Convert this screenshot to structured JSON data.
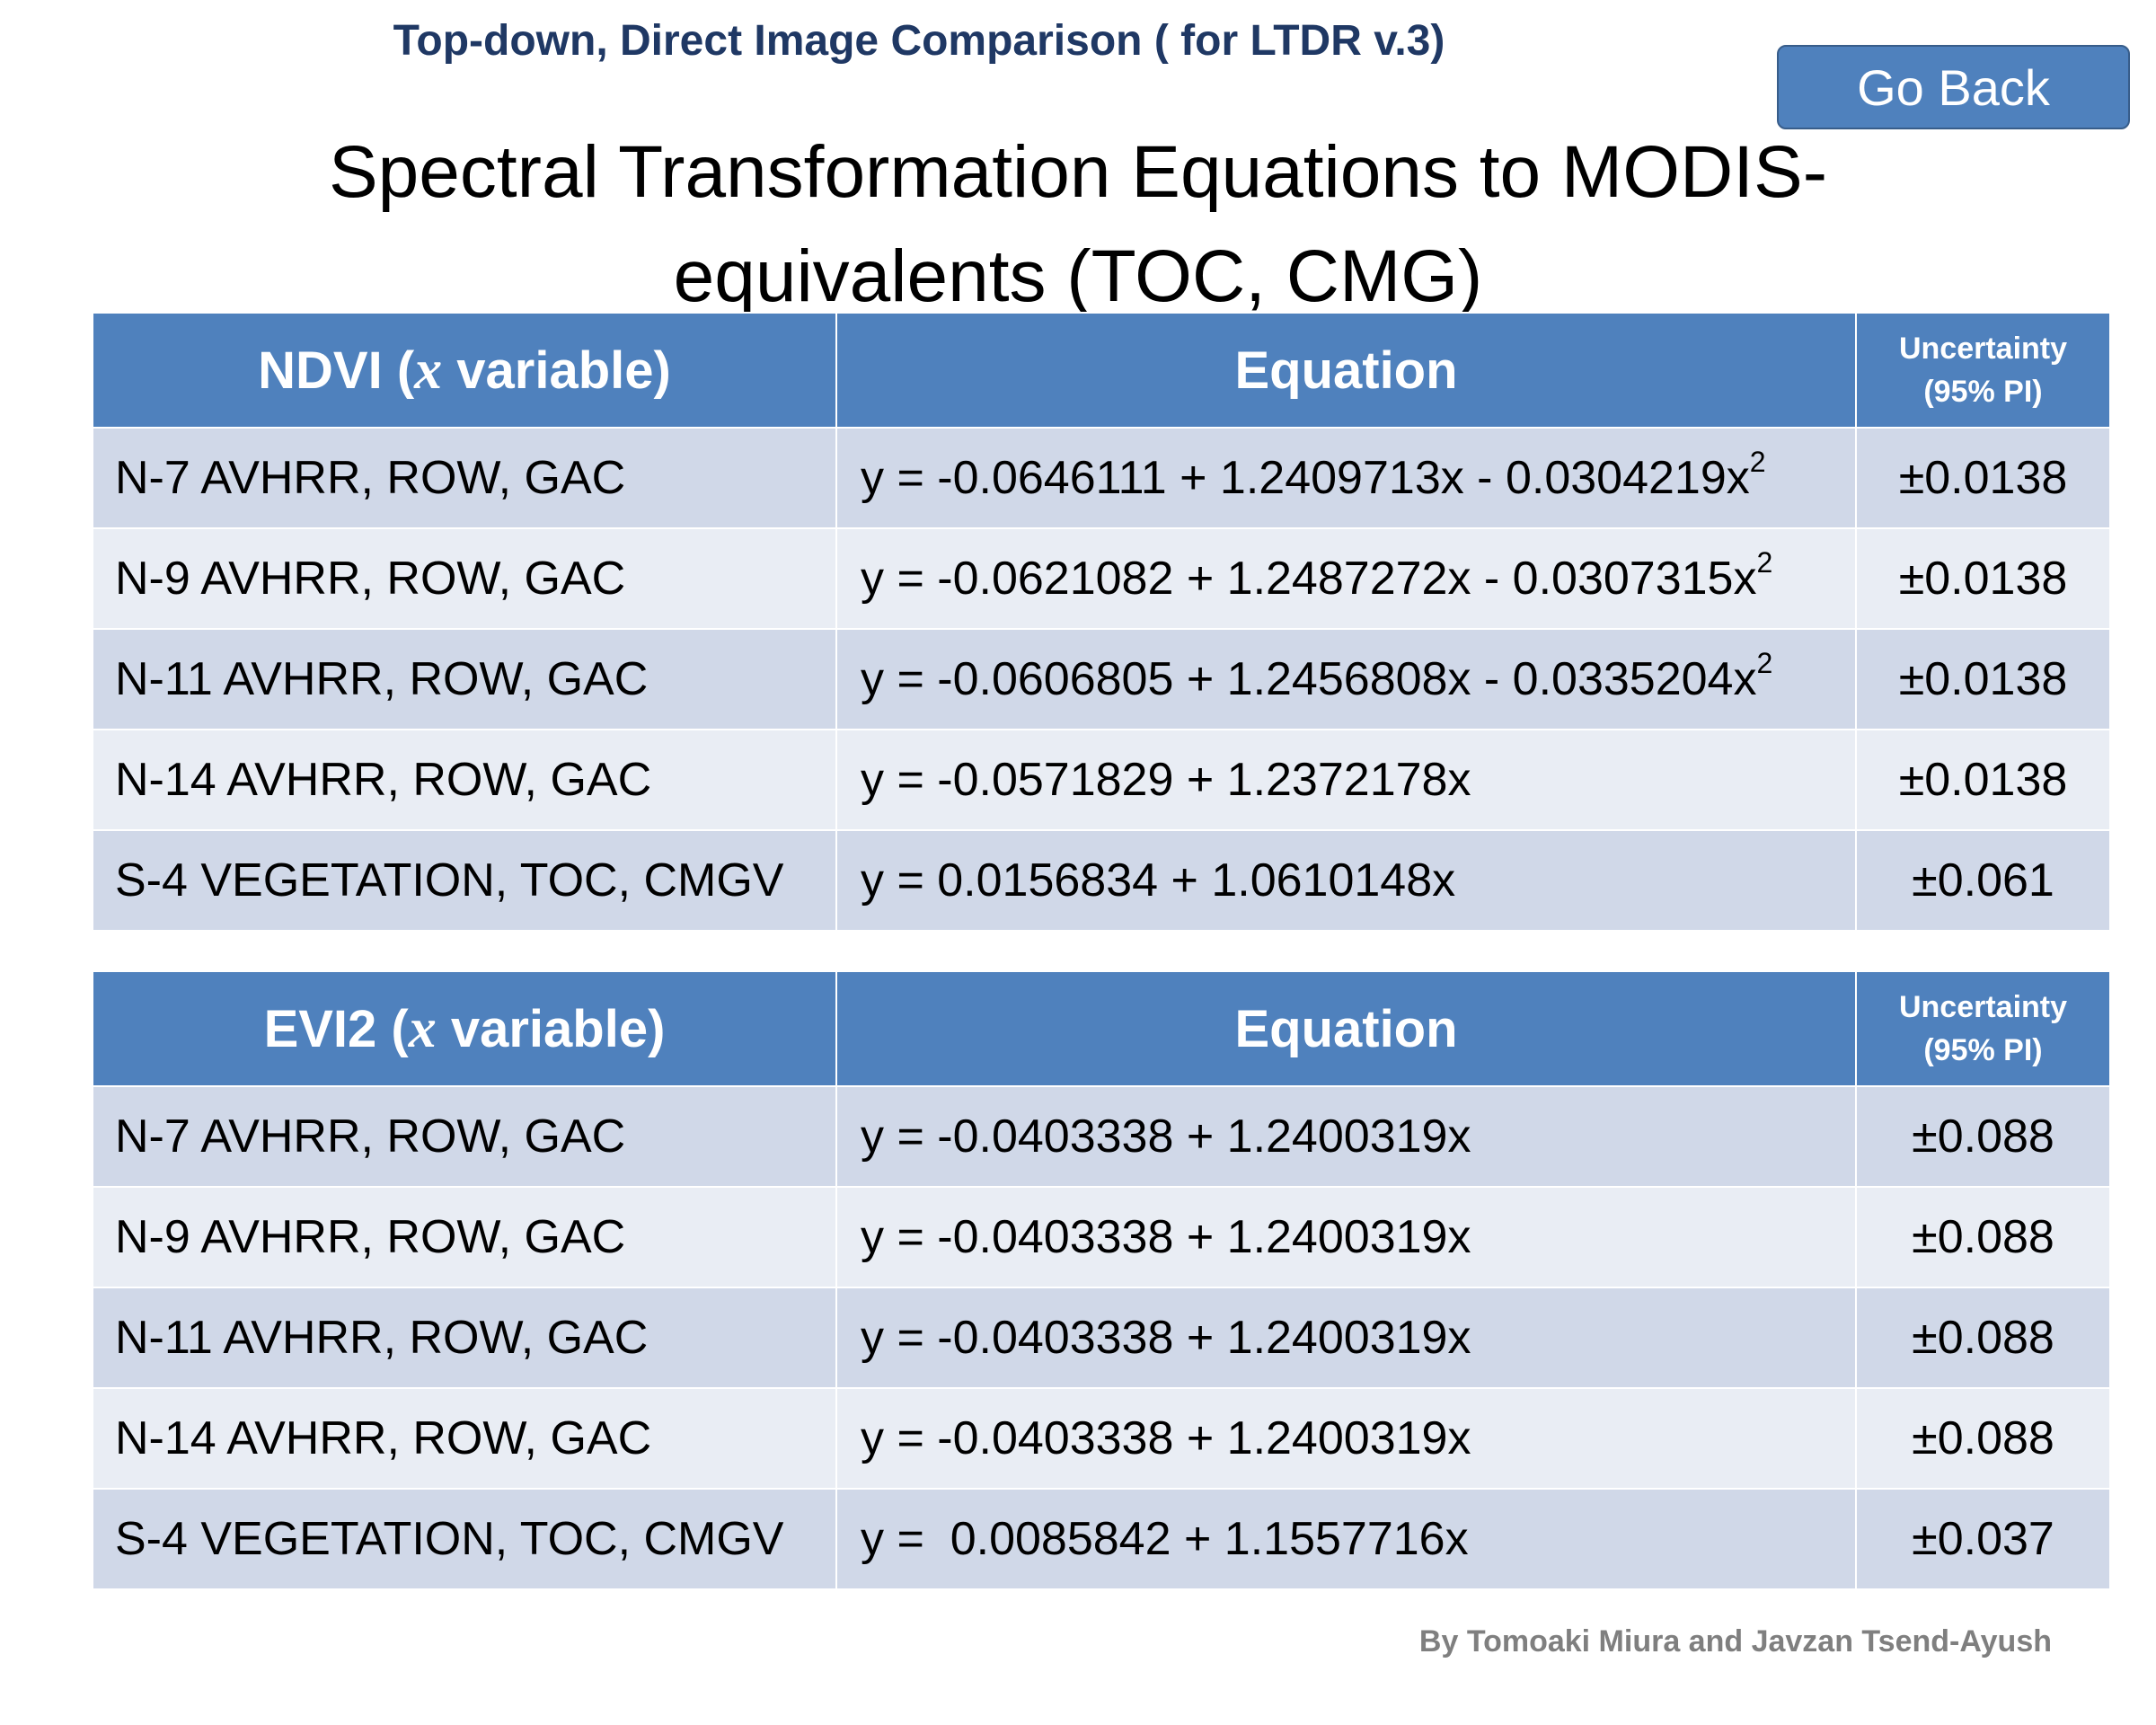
{
  "header": {
    "subtitle": "Top-down, Direct Image Comparison ( for LTDR v.3)",
    "button": "Go Back",
    "title": [
      "Spectral Transformation Equations to MODIS-",
      "equivalents (TOC, CMG)"
    ]
  },
  "tables": [
    {
      "columns": [
        {
          "parts": [
            "NDVI (",
            "x",
            " variable)"
          ]
        },
        "Equation",
        [
          "Uncertainty",
          "(95% PI)"
        ]
      ],
      "rows": [
        {
          "sensor": "N-7 AVHRR, ROW, GAC",
          "equation": "y = -0.0646111 + 1.2409713x - 0.0304219x",
          "equation_sup": "2",
          "uncertainty": "±0.0138"
        },
        {
          "sensor": "N-9 AVHRR, ROW, GAC",
          "equation": "y = -0.0621082 + 1.2487272x - 0.0307315x",
          "equation_sup": "2",
          "uncertainty": "±0.0138"
        },
        {
          "sensor": "N-11 AVHRR, ROW, GAC",
          "equation": "y = -0.0606805 + 1.2456808x - 0.0335204x",
          "equation_sup": "2",
          "uncertainty": "±0.0138"
        },
        {
          "sensor": "N-14 AVHRR, ROW, GAC",
          "equation": "y = -0.0571829 + 1.2372178x",
          "uncertainty": "±0.0138"
        },
        {
          "sensor": "S-4 VEGETATION, TOC, CMGV",
          "equation": "y = 0.0156834 + 1.0610148x",
          "uncertainty": "±0.061"
        }
      ]
    },
    {
      "columns": [
        {
          "parts": [
            "EVI2 (",
            "x",
            " variable)"
          ]
        },
        "Equation",
        [
          "Uncertainty",
          "(95% PI)"
        ]
      ],
      "rows": [
        {
          "sensor": "N-7 AVHRR, ROW, GAC",
          "equation": "y = -0.0403338 + 1.2400319x",
          "uncertainty": "±0.088"
        },
        {
          "sensor": "N-9 AVHRR, ROW, GAC",
          "equation": "y = -0.0403338 + 1.2400319x",
          "uncertainty": "±0.088"
        },
        {
          "sensor": "N-11 AVHRR, ROW, GAC",
          "equation": "y = -0.0403338 + 1.2400319x",
          "uncertainty": "±0.088"
        },
        {
          "sensor": "N-14 AVHRR, ROW, GAC",
          "equation": "y = -0.0403338 + 1.2400319x",
          "uncertainty": "±0.088"
        },
        {
          "sensor": "S-4 VEGETATION, TOC, CMGV",
          "equation": "y =  0.0085842 + 1.1557716x",
          "uncertainty": "±0.037"
        }
      ]
    }
  ],
  "footer": {
    "credit": "By Tomoaki Miura and Javzan Tsend-Ayush"
  }
}
